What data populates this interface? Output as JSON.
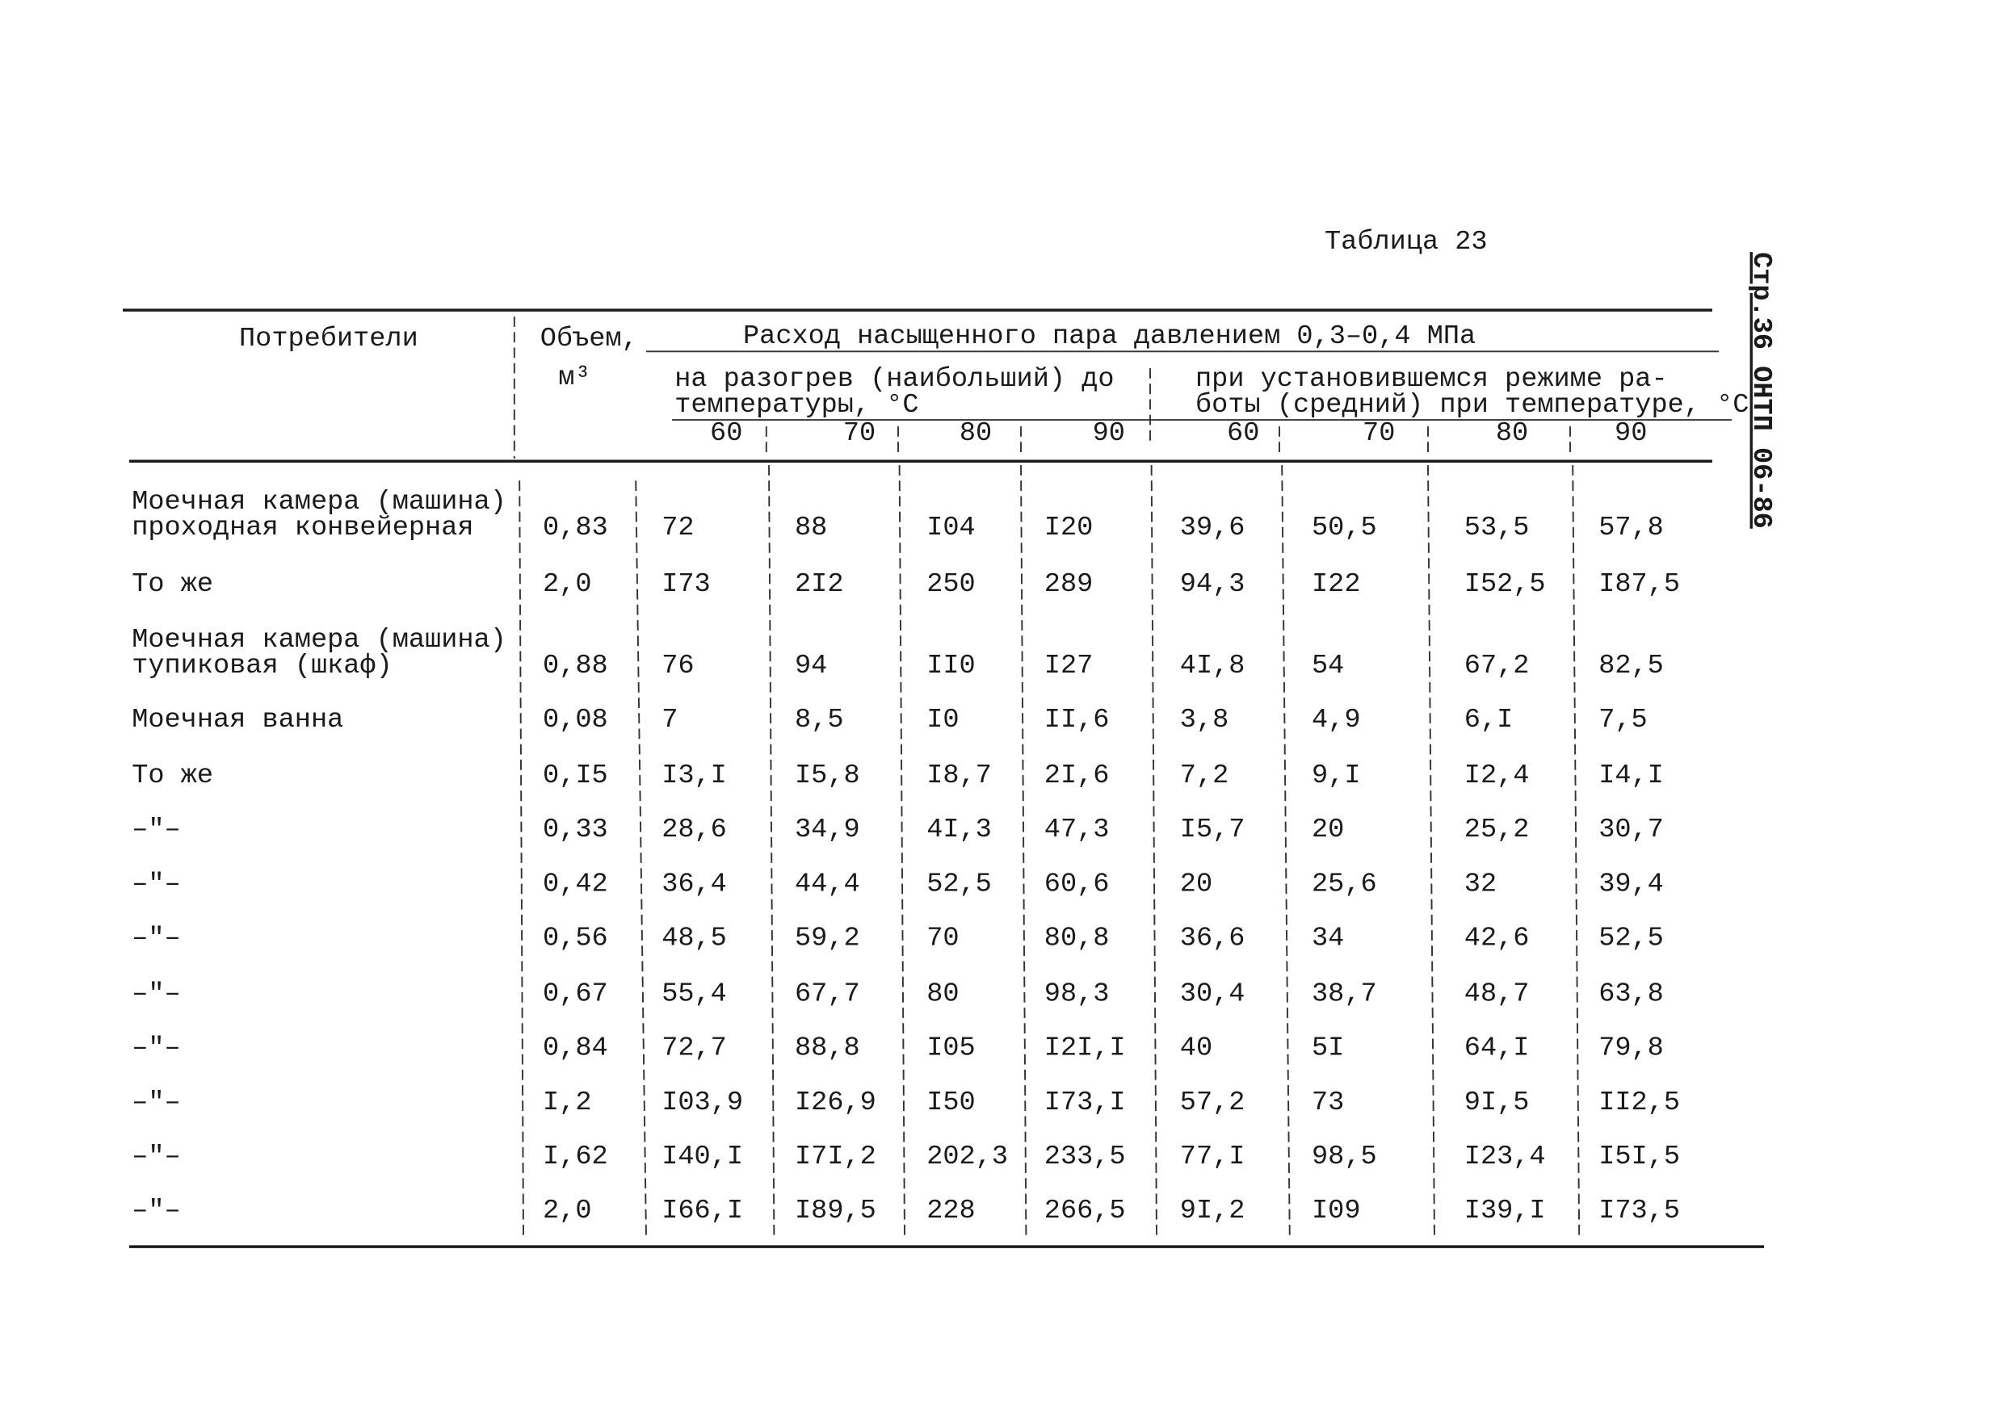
{
  "table_label": "Таблица 23",
  "side_text": "Стр.36 ОНТП 06-86",
  "header": {
    "consumers": "Потребители",
    "volume": "Объем,",
    "volume_unit": "м³",
    "group": "Расход насыщенного пара давлением 0,3–0,4 МПа",
    "heating": [
      "на разогрев (наибольший) до",
      "температуры, °С"
    ],
    "steady": [
      "при установившемся режиме ра-",
      "боты (средний) при температуре, °С"
    ],
    "temperatures": [
      "60",
      "70",
      "80",
      "90",
      "60",
      "70",
      "80",
      "90"
    ]
  },
  "rows": [
    {
      "consumer": [
        "Моечная камера (машина)",
        "проходная конвейерная"
      ],
      "volume": "0,83",
      "values": [
        "72",
        "88",
        "I04",
        "I20",
        "39,6",
        "50,5",
        "53,5",
        "57,8"
      ]
    },
    {
      "consumer": [
        "То же"
      ],
      "volume": "2,0",
      "values": [
        "I73",
        "2I2",
        "250",
        "289",
        "94,3",
        "I22",
        "I52,5",
        "I87,5"
      ]
    },
    {
      "consumer": [
        "Моечная камера (машина)",
        "тупиковая (шкаф)"
      ],
      "volume": "0,88",
      "values": [
        "76",
        "94",
        "II0",
        "I27",
        "4I,8",
        "54",
        "67,2",
        "82,5"
      ]
    },
    {
      "consumer": [
        "Моечная ванна"
      ],
      "volume": "0,08",
      "values": [
        "7",
        "8,5",
        "I0",
        "II,6",
        "3,8",
        "4,9",
        "6,I",
        "7,5"
      ]
    },
    {
      "consumer": [
        "То же"
      ],
      "volume": "0,I5",
      "values": [
        "I3,I",
        "I5,8",
        "I8,7",
        "2I,6",
        "7,2",
        "9,I",
        "I2,4",
        "I4,I"
      ]
    },
    {
      "consumer": [
        "–\"–"
      ],
      "volume": "0,33",
      "values": [
        "28,6",
        "34,9",
        "4I,3",
        "47,3",
        "I5,7",
        "20",
        "25,2",
        "30,7"
      ]
    },
    {
      "consumer": [
        "–\"–"
      ],
      "volume": "0,42",
      "values": [
        "36,4",
        "44,4",
        "52,5",
        "60,6",
        "20",
        "25,6",
        "32",
        "39,4"
      ]
    },
    {
      "consumer": [
        "–\"–"
      ],
      "volume": "0,56",
      "values": [
        "48,5",
        "59,2",
        "70",
        "80,8",
        "36,6",
        "34",
        "42,6",
        "52,5"
      ]
    },
    {
      "consumer": [
        "–\"–"
      ],
      "volume": "0,67",
      "values": [
        "55,4",
        "67,7",
        "80",
        "98,3",
        "30,4",
        "38,7",
        "48,7",
        "63,8"
      ]
    },
    {
      "consumer": [
        "–\"–"
      ],
      "volume": "0,84",
      "values": [
        "72,7",
        "88,8",
        "I05",
        "I2I,I",
        "40",
        "5I",
        "64,I",
        "79,8"
      ]
    },
    {
      "consumer": [
        "–\"–"
      ],
      "volume": "I,2",
      "values": [
        "I03,9",
        "I26,9",
        "I50",
        "I73,I",
        "57,2",
        "73",
        "9I,5",
        "II2,5"
      ]
    },
    {
      "consumer": [
        "–\"–"
      ],
      "volume": "I,62",
      "values": [
        "I40,I",
        "I7I,2",
        "202,3",
        "233,5",
        "77,I",
        "98,5",
        "I23,4",
        "I5I,5"
      ]
    },
    {
      "consumer": [
        "–\"–"
      ],
      "volume": "2,0",
      "values": [
        "I66,I",
        "I89,5",
        "228",
        "266,5",
        "9I,2",
        "I09",
        "I39,I",
        "I73,5"
      ]
    }
  ]
}
